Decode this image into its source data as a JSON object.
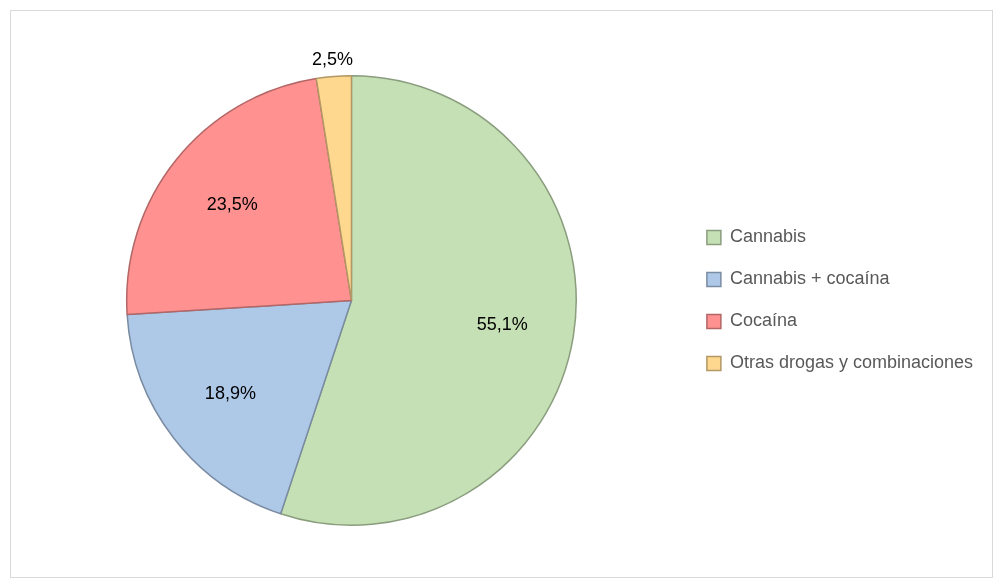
{
  "chart_data": {
    "type": "pie",
    "categories": [
      "Cannabis",
      "Cannabis + cocaína",
      "Cocaína",
      "Otras drogas y combinaciones"
    ],
    "values": [
      55.1,
      18.9,
      23.5,
      2.5
    ],
    "colors": [
      "#c5e0b4",
      "#aec8e8",
      "#ff9191",
      "#ffd88f"
    ],
    "value_labels": [
      "55,1%",
      "18,9%",
      "23,5%",
      "2,5%"
    ],
    "legend": "right"
  }
}
